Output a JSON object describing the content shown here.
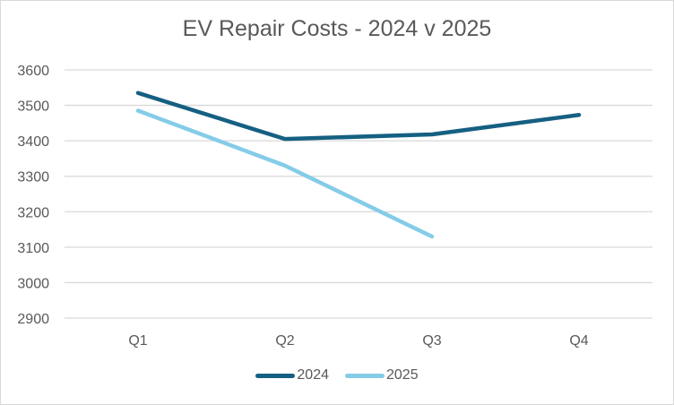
{
  "chart_data": {
    "type": "line",
    "title": "EV Repair Costs - 2024 v 2025",
    "xlabel": "",
    "ylabel": "",
    "categories": [
      "Q1",
      "Q2",
      "Q3",
      "Q4"
    ],
    "ylim": [
      2900,
      3600
    ],
    "yticks": [
      2900,
      3000,
      3100,
      3200,
      3300,
      3400,
      3500,
      3600
    ],
    "ytick_labels": [
      "2900",
      "3000",
      "3100",
      "3200",
      "3300",
      "3400",
      "3500",
      "3600"
    ],
    "grid": true,
    "legend": "bottom",
    "series": [
      {
        "name": "2024",
        "color": "#156082",
        "values": [
          3535,
          3405,
          3418,
          3473
        ]
      },
      {
        "name": "2025",
        "color": "#84CCE8",
        "values": [
          3485,
          3330,
          3130,
          null
        ]
      }
    ]
  }
}
